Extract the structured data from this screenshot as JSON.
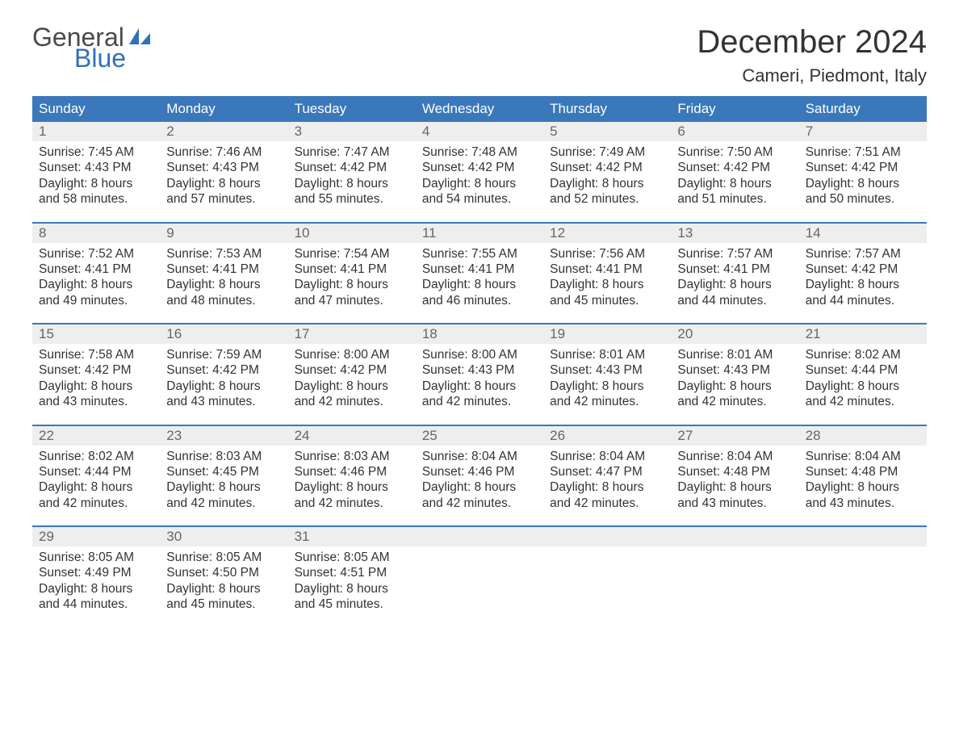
{
  "logo": {
    "text_general": "General",
    "text_blue": "Blue",
    "color_blue": "#2f72b8",
    "color_gray": "#4a4a4a"
  },
  "title": "December 2024",
  "location": "Cameri, Piedmont, Italy",
  "colors": {
    "header_bg": "#3a78bb",
    "header_text": "#ffffff",
    "daynum_bg": "#eeeeee",
    "border": "#3a78bb",
    "text": "#333333"
  },
  "day_headers": [
    "Sunday",
    "Monday",
    "Tuesday",
    "Wednesday",
    "Thursday",
    "Friday",
    "Saturday"
  ],
  "weeks": [
    [
      {
        "n": "1",
        "sunrise": "Sunrise: 7:45 AM",
        "sunset": "Sunset: 4:43 PM",
        "d1": "Daylight: 8 hours",
        "d2": "and 58 minutes."
      },
      {
        "n": "2",
        "sunrise": "Sunrise: 7:46 AM",
        "sunset": "Sunset: 4:43 PM",
        "d1": "Daylight: 8 hours",
        "d2": "and 57 minutes."
      },
      {
        "n": "3",
        "sunrise": "Sunrise: 7:47 AM",
        "sunset": "Sunset: 4:42 PM",
        "d1": "Daylight: 8 hours",
        "d2": "and 55 minutes."
      },
      {
        "n": "4",
        "sunrise": "Sunrise: 7:48 AM",
        "sunset": "Sunset: 4:42 PM",
        "d1": "Daylight: 8 hours",
        "d2": "and 54 minutes."
      },
      {
        "n": "5",
        "sunrise": "Sunrise: 7:49 AM",
        "sunset": "Sunset: 4:42 PM",
        "d1": "Daylight: 8 hours",
        "d2": "and 52 minutes."
      },
      {
        "n": "6",
        "sunrise": "Sunrise: 7:50 AM",
        "sunset": "Sunset: 4:42 PM",
        "d1": "Daylight: 8 hours",
        "d2": "and 51 minutes."
      },
      {
        "n": "7",
        "sunrise": "Sunrise: 7:51 AM",
        "sunset": "Sunset: 4:42 PM",
        "d1": "Daylight: 8 hours",
        "d2": "and 50 minutes."
      }
    ],
    [
      {
        "n": "8",
        "sunrise": "Sunrise: 7:52 AM",
        "sunset": "Sunset: 4:41 PM",
        "d1": "Daylight: 8 hours",
        "d2": "and 49 minutes."
      },
      {
        "n": "9",
        "sunrise": "Sunrise: 7:53 AM",
        "sunset": "Sunset: 4:41 PM",
        "d1": "Daylight: 8 hours",
        "d2": "and 48 minutes."
      },
      {
        "n": "10",
        "sunrise": "Sunrise: 7:54 AM",
        "sunset": "Sunset: 4:41 PM",
        "d1": "Daylight: 8 hours",
        "d2": "and 47 minutes."
      },
      {
        "n": "11",
        "sunrise": "Sunrise: 7:55 AM",
        "sunset": "Sunset: 4:41 PM",
        "d1": "Daylight: 8 hours",
        "d2": "and 46 minutes."
      },
      {
        "n": "12",
        "sunrise": "Sunrise: 7:56 AM",
        "sunset": "Sunset: 4:41 PM",
        "d1": "Daylight: 8 hours",
        "d2": "and 45 minutes."
      },
      {
        "n": "13",
        "sunrise": "Sunrise: 7:57 AM",
        "sunset": "Sunset: 4:41 PM",
        "d1": "Daylight: 8 hours",
        "d2": "and 44 minutes."
      },
      {
        "n": "14",
        "sunrise": "Sunrise: 7:57 AM",
        "sunset": "Sunset: 4:42 PM",
        "d1": "Daylight: 8 hours",
        "d2": "and 44 minutes."
      }
    ],
    [
      {
        "n": "15",
        "sunrise": "Sunrise: 7:58 AM",
        "sunset": "Sunset: 4:42 PM",
        "d1": "Daylight: 8 hours",
        "d2": "and 43 minutes."
      },
      {
        "n": "16",
        "sunrise": "Sunrise: 7:59 AM",
        "sunset": "Sunset: 4:42 PM",
        "d1": "Daylight: 8 hours",
        "d2": "and 43 minutes."
      },
      {
        "n": "17",
        "sunrise": "Sunrise: 8:00 AM",
        "sunset": "Sunset: 4:42 PM",
        "d1": "Daylight: 8 hours",
        "d2": "and 42 minutes."
      },
      {
        "n": "18",
        "sunrise": "Sunrise: 8:00 AM",
        "sunset": "Sunset: 4:43 PM",
        "d1": "Daylight: 8 hours",
        "d2": "and 42 minutes."
      },
      {
        "n": "19",
        "sunrise": "Sunrise: 8:01 AM",
        "sunset": "Sunset: 4:43 PM",
        "d1": "Daylight: 8 hours",
        "d2": "and 42 minutes."
      },
      {
        "n": "20",
        "sunrise": "Sunrise: 8:01 AM",
        "sunset": "Sunset: 4:43 PM",
        "d1": "Daylight: 8 hours",
        "d2": "and 42 minutes."
      },
      {
        "n": "21",
        "sunrise": "Sunrise: 8:02 AM",
        "sunset": "Sunset: 4:44 PM",
        "d1": "Daylight: 8 hours",
        "d2": "and 42 minutes."
      }
    ],
    [
      {
        "n": "22",
        "sunrise": "Sunrise: 8:02 AM",
        "sunset": "Sunset: 4:44 PM",
        "d1": "Daylight: 8 hours",
        "d2": "and 42 minutes."
      },
      {
        "n": "23",
        "sunrise": "Sunrise: 8:03 AM",
        "sunset": "Sunset: 4:45 PM",
        "d1": "Daylight: 8 hours",
        "d2": "and 42 minutes."
      },
      {
        "n": "24",
        "sunrise": "Sunrise: 8:03 AM",
        "sunset": "Sunset: 4:46 PM",
        "d1": "Daylight: 8 hours",
        "d2": "and 42 minutes."
      },
      {
        "n": "25",
        "sunrise": "Sunrise: 8:04 AM",
        "sunset": "Sunset: 4:46 PM",
        "d1": "Daylight: 8 hours",
        "d2": "and 42 minutes."
      },
      {
        "n": "26",
        "sunrise": "Sunrise: 8:04 AM",
        "sunset": "Sunset: 4:47 PM",
        "d1": "Daylight: 8 hours",
        "d2": "and 42 minutes."
      },
      {
        "n": "27",
        "sunrise": "Sunrise: 8:04 AM",
        "sunset": "Sunset: 4:48 PM",
        "d1": "Daylight: 8 hours",
        "d2": "and 43 minutes."
      },
      {
        "n": "28",
        "sunrise": "Sunrise: 8:04 AM",
        "sunset": "Sunset: 4:48 PM",
        "d1": "Daylight: 8 hours",
        "d2": "and 43 minutes."
      }
    ],
    [
      {
        "n": "29",
        "sunrise": "Sunrise: 8:05 AM",
        "sunset": "Sunset: 4:49 PM",
        "d1": "Daylight: 8 hours",
        "d2": "and 44 minutes."
      },
      {
        "n": "30",
        "sunrise": "Sunrise: 8:05 AM",
        "sunset": "Sunset: 4:50 PM",
        "d1": "Daylight: 8 hours",
        "d2": "and 45 minutes."
      },
      {
        "n": "31",
        "sunrise": "Sunrise: 8:05 AM",
        "sunset": "Sunset: 4:51 PM",
        "d1": "Daylight: 8 hours",
        "d2": "and 45 minutes."
      },
      null,
      null,
      null,
      null
    ]
  ]
}
